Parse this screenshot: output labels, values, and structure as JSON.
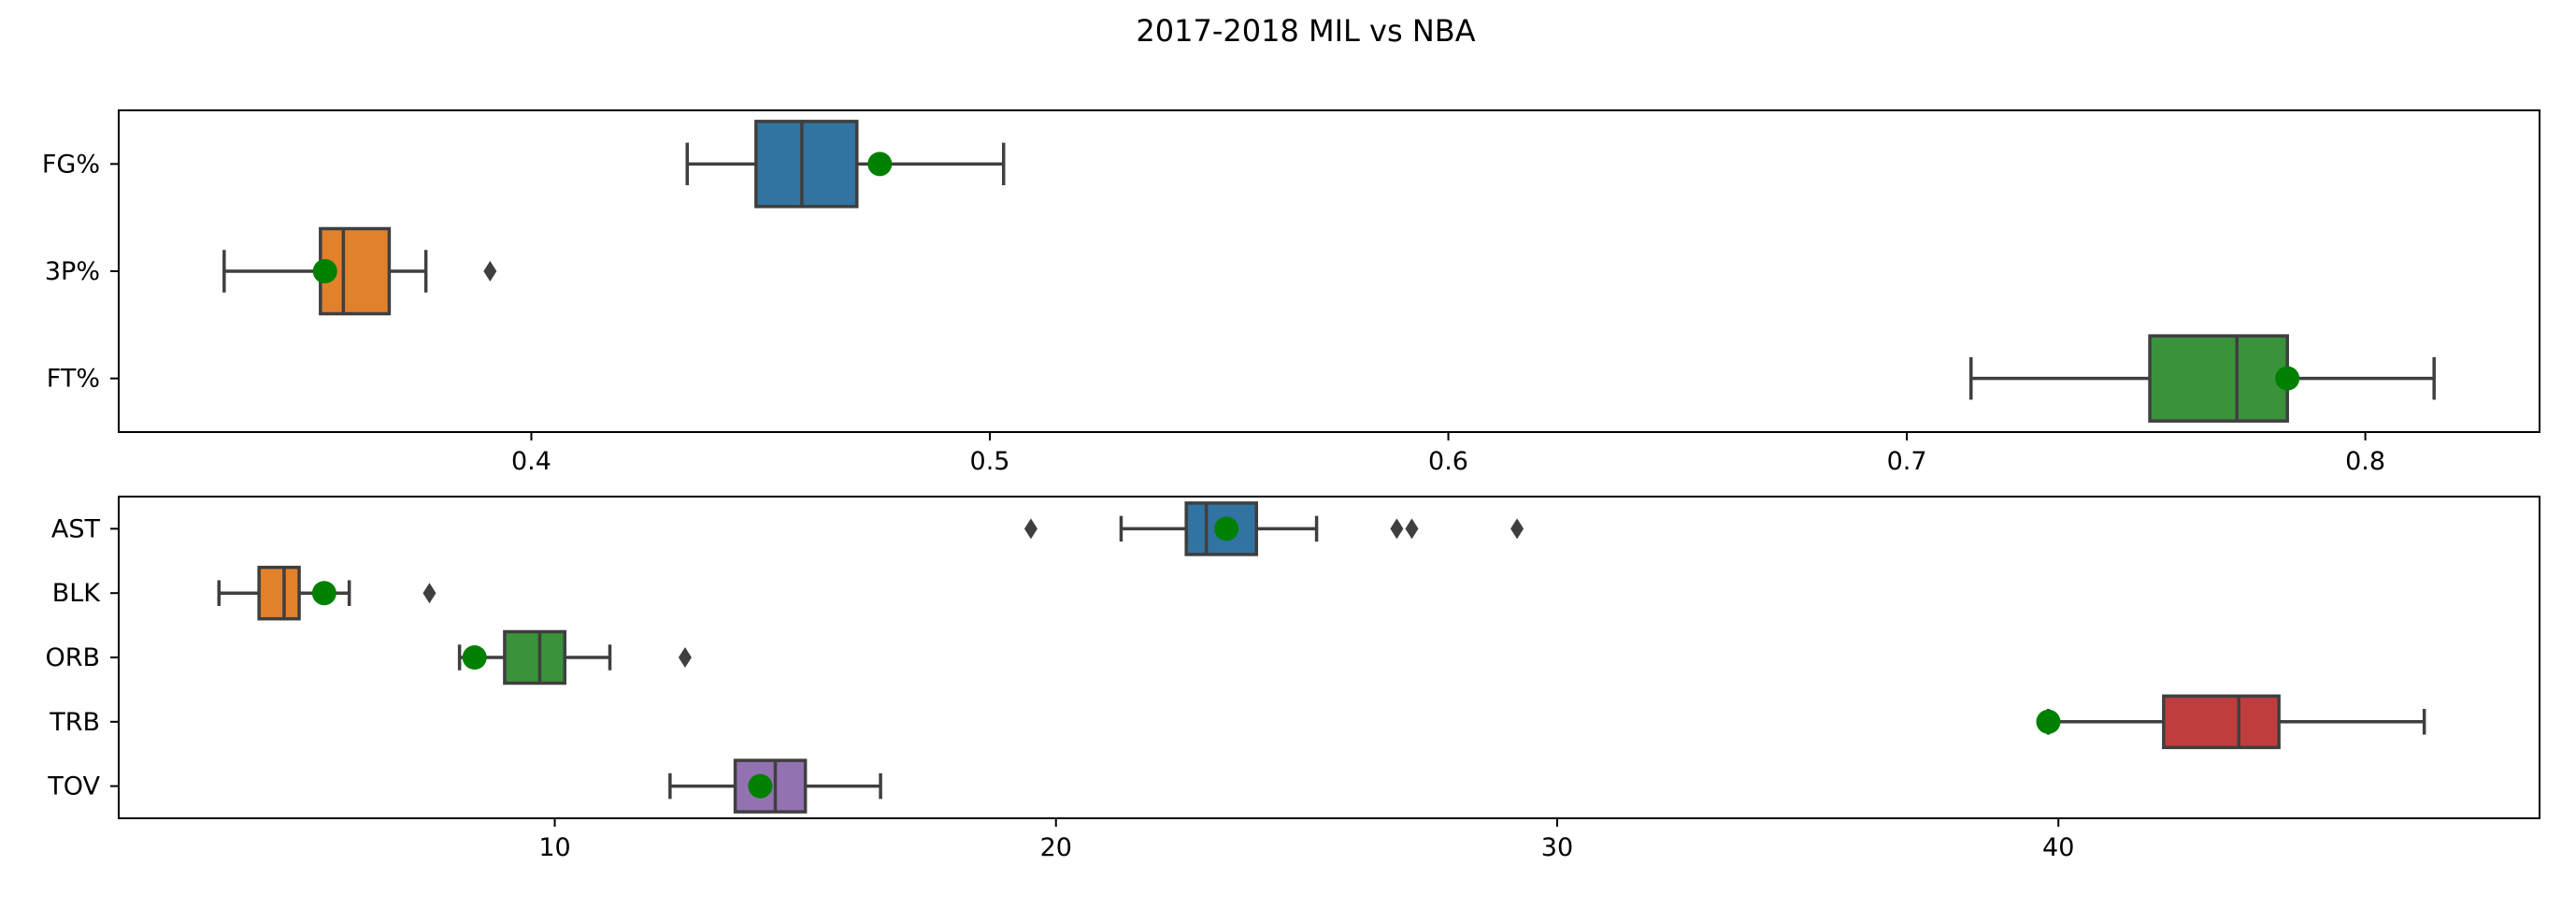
{
  "title": "2017-2018 MIL vs NBA",
  "colors": {
    "box_fills": [
      "#3274a1",
      "#e1812c",
      "#3a923a",
      "#c03d3e",
      "#9372b2"
    ],
    "edge": "#3f3f3f",
    "team_marker": "#008000",
    "outlier": "#3f3f3f"
  },
  "chart_data": [
    {
      "type": "box",
      "orientation": "horizontal",
      "title": "",
      "xlabel": "",
      "ylabel": "",
      "xlim": [
        0.31,
        0.838
      ],
      "xticks": [
        "0.4",
        "0.5",
        "0.6",
        "0.7",
        "0.8"
      ],
      "xtick_values": [
        0.4,
        0.5,
        0.6,
        0.7,
        0.8
      ],
      "grid": false,
      "categories": [
        "FG%",
        "3P%",
        "FT%"
      ],
      "boxes": [
        {
          "label": "FG%",
          "whisker_low": 0.434,
          "q1": 0.449,
          "median": 0.459,
          "q3": 0.471,
          "whisker_high": 0.503,
          "outliers": [],
          "team_value": 0.476
        },
        {
          "label": "3P%",
          "whisker_low": 0.333,
          "q1": 0.354,
          "median": 0.359,
          "q3": 0.369,
          "whisker_high": 0.377,
          "outliers": [
            0.391
          ],
          "team_value": 0.355
        },
        {
          "label": "FT%",
          "whisker_low": 0.714,
          "q1": 0.753,
          "median": 0.772,
          "q3": 0.783,
          "whisker_high": 0.815,
          "outliers": [],
          "team_value": 0.783
        }
      ]
    },
    {
      "type": "box",
      "orientation": "horizontal",
      "title": "",
      "xlabel": "",
      "ylabel": "",
      "xlim": [
        1.3,
        49.6
      ],
      "xticks": [
        "10",
        "20",
        "30",
        "40"
      ],
      "xtick_values": [
        10,
        20,
        30,
        40
      ],
      "grid": false,
      "categories": [
        "AST",
        "BLK",
        "ORB",
        "TRB",
        "TOV"
      ],
      "boxes": [
        {
          "label": "AST",
          "whisker_low": 21.3,
          "q1": 22.6,
          "median": 23.0,
          "q3": 24.0,
          "whisker_high": 25.2,
          "outliers": [
            19.5,
            26.8,
            27.1,
            29.2
          ],
          "team_value": 23.4
        },
        {
          "label": "BLK",
          "whisker_low": 3.3,
          "q1": 4.1,
          "median": 4.6,
          "q3": 4.9,
          "whisker_high": 5.9,
          "outliers": [
            7.5
          ],
          "team_value": 5.4
        },
        {
          "label": "ORB",
          "whisker_low": 8.1,
          "q1": 9.0,
          "median": 9.7,
          "q3": 10.2,
          "whisker_high": 11.1,
          "outliers": [
            12.6
          ],
          "team_value": 8.4
        },
        {
          "label": "TRB",
          "whisker_low": 39.8,
          "q1": 42.1,
          "median": 43.6,
          "q3": 44.4,
          "whisker_high": 47.3,
          "outliers": [],
          "team_value": 39.8
        },
        {
          "label": "TOV",
          "whisker_low": 12.3,
          "q1": 13.6,
          "median": 14.4,
          "q3": 15.0,
          "whisker_high": 16.5,
          "outliers": [],
          "team_value": 14.1
        }
      ]
    }
  ]
}
